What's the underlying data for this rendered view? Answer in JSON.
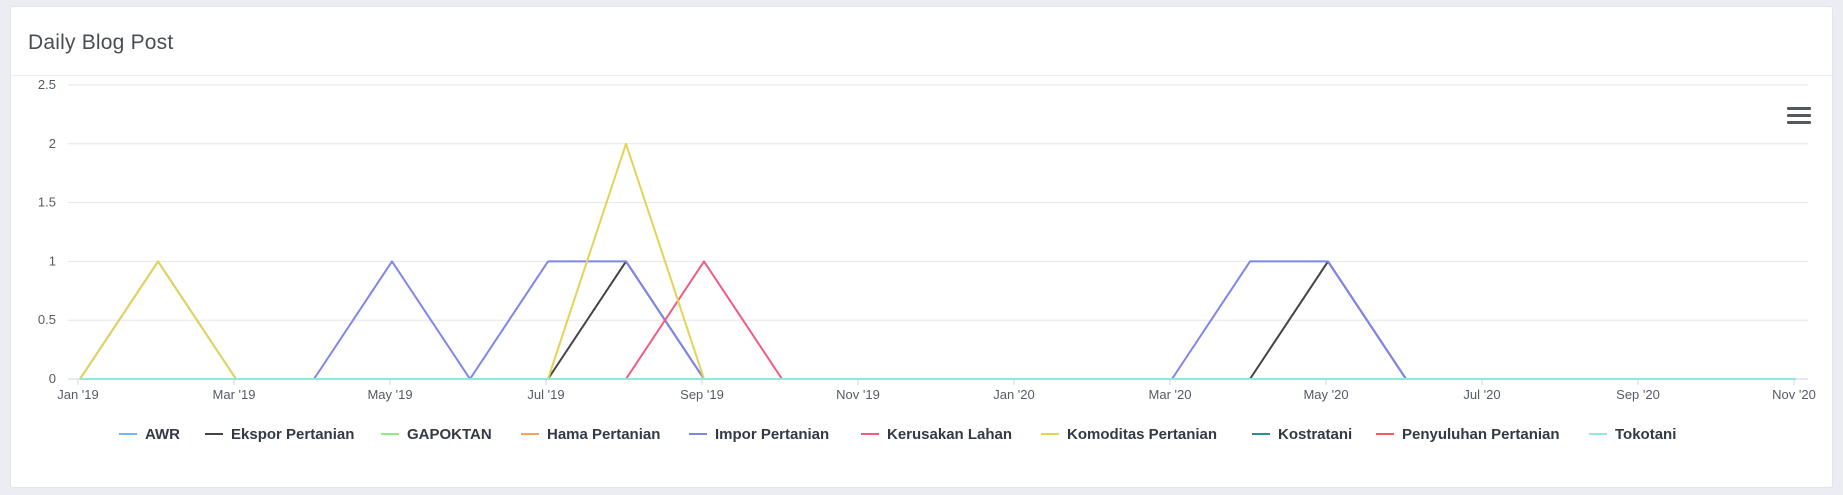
{
  "card": {
    "title": "Daily Blog Post"
  },
  "menu": {
    "icon": "hamburger-menu-icon"
  },
  "chart_data": {
    "type": "line",
    "title": "Daily Blog Post",
    "xlabel": "",
    "ylabel": "",
    "ylim": [
      0,
      2.5
    ],
    "yticks": [
      "0",
      "0.5",
      "1",
      "1.5",
      "2",
      "2.5"
    ],
    "ytick_values": [
      0,
      0.5,
      1,
      1.5,
      2,
      2.5
    ],
    "xticks": [
      "Jan '19",
      "Mar '19",
      "May '19",
      "Jul '19",
      "Sep '19",
      "Nov '19",
      "Jan '20",
      "Mar '20",
      "May '20",
      "Jul '20",
      "Sep '20",
      "Nov '20"
    ],
    "x": [
      "2019-01",
      "2019-02",
      "2019-03",
      "2019-04",
      "2019-05",
      "2019-06",
      "2019-07",
      "2019-08",
      "2019-09",
      "2019-10",
      "2019-11",
      "2019-12",
      "2020-01",
      "2020-02",
      "2020-03",
      "2020-04",
      "2020-05",
      "2020-06",
      "2020-07",
      "2020-08",
      "2020-09",
      "2020-10",
      "2020-11"
    ],
    "grid": true,
    "legend_position": "bottom",
    "series": [
      {
        "name": "AWR",
        "color": "#7cb5ec",
        "values": [
          0,
          1,
          0,
          0,
          0,
          0,
          0,
          0,
          0,
          0,
          0,
          0,
          0,
          0,
          0,
          0,
          0,
          0,
          0,
          0,
          0,
          0,
          0
        ]
      },
      {
        "name": "Ekspor Pertanian",
        "color": "#434348",
        "values": [
          0,
          0,
          0,
          0,
          0,
          0,
          0,
          1,
          0,
          0,
          0,
          0,
          0,
          0,
          0,
          0,
          1,
          0,
          0,
          0,
          0,
          0,
          0
        ]
      },
      {
        "name": "GAPOKTAN",
        "color": "#90ed7d",
        "values": [
          0,
          0,
          0,
          0,
          0,
          0,
          0,
          0,
          0,
          0,
          0,
          0,
          0,
          0,
          0,
          0,
          0,
          0,
          0,
          0,
          0,
          0,
          0
        ]
      },
      {
        "name": "Hama Pertanian",
        "color": "#f7a35c",
        "values": [
          0,
          0,
          0,
          0,
          0,
          0,
          0,
          0,
          0,
          0,
          0,
          0,
          0,
          0,
          0,
          0,
          0,
          0,
          0,
          0,
          0,
          0,
          0
        ]
      },
      {
        "name": "Impor Pertanian",
        "color": "#8085e9",
        "values": [
          0,
          0,
          0,
          0,
          1,
          0,
          1,
          1,
          0,
          0,
          0,
          0,
          0,
          0,
          0,
          1,
          1,
          0,
          0,
          0,
          0,
          0,
          0
        ]
      },
      {
        "name": "Kerusakan Lahan",
        "color": "#f15c80",
        "values": [
          0,
          0,
          0,
          0,
          0,
          0,
          0,
          0,
          1,
          0,
          0,
          0,
          0,
          0,
          0,
          0,
          0,
          0,
          0,
          0,
          0,
          0,
          0
        ]
      },
      {
        "name": "Komoditas Pertanian",
        "color": "#e4d354",
        "values": [
          0,
          1,
          0,
          0,
          0,
          0,
          0,
          2,
          0,
          0,
          0,
          0,
          0,
          0,
          0,
          0,
          0,
          0,
          0,
          0,
          0,
          0,
          0
        ]
      },
      {
        "name": "Kostratani",
        "color": "#2b908f",
        "values": [
          0,
          0,
          0,
          0,
          0,
          0,
          0,
          0,
          0,
          0,
          0,
          0,
          0,
          0,
          0,
          0,
          0,
          0,
          0,
          0,
          0,
          0,
          0
        ]
      },
      {
        "name": "Penyuluhan Pertanian",
        "color": "#f45b5b",
        "values": [
          0,
          0,
          0,
          0,
          0,
          0,
          0,
          0,
          0,
          0,
          0,
          0,
          0,
          0,
          0,
          0,
          0,
          0,
          0,
          0,
          0,
          0,
          0
        ]
      },
      {
        "name": "Tokotani",
        "color": "#91e8e1",
        "values": [
          0,
          0,
          0,
          0,
          0,
          0,
          0,
          0,
          0,
          0,
          0,
          0,
          0,
          0,
          0,
          0,
          0,
          0,
          0,
          0,
          0,
          0,
          0
        ]
      }
    ]
  }
}
